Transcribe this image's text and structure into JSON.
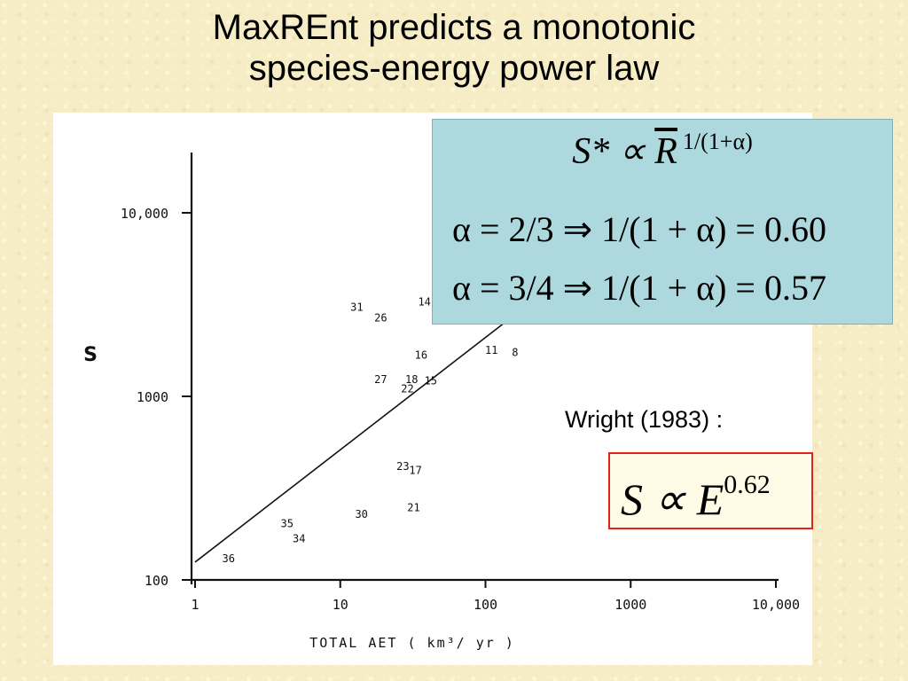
{
  "slide": {
    "title_line1": "MaxREnt predicts a monotonic",
    "title_line2": "species-energy power law"
  },
  "formulas": {
    "main_lhs": "S*",
    "main_prop": " ∝ ",
    "main_var": "R",
    "main_exp": "1/(1+α)",
    "line1": "α = 2/3 ⇒ 1/(1 + α) = 0.60",
    "line2": "α = 3/4 ⇒ 1/(1 + α) = 0.57"
  },
  "wright": {
    "label": "Wright (1983) :",
    "eq_base": "S ∝ E",
    "eq_exp": "0.62"
  },
  "chart_data": {
    "type": "scatter",
    "xlabel": "TOTAL AET  ( km³/ yr )",
    "ylabel": "S",
    "xscale": "log",
    "yscale": "log",
    "xlim": [
      1,
      10000
    ],
    "ylim": [
      100,
      15000
    ],
    "x_ticks": [
      1,
      10,
      100,
      1000,
      10000
    ],
    "x_tick_labels": [
      "1",
      "10",
      "100",
      "1000",
      "10,000"
    ],
    "y_ticks": [
      100,
      1000,
      10000
    ],
    "y_tick_labels": [
      "100",
      "1000",
      "10,000"
    ],
    "grid": false,
    "points": [
      {
        "label": "31",
        "x": 13,
        "y": 3100
      },
      {
        "label": "26",
        "x": 19,
        "y": 2700
      },
      {
        "label": "14",
        "x": 38,
        "y": 3300
      },
      {
        "label": "16",
        "x": 36,
        "y": 1700
      },
      {
        "label": "11",
        "x": 110,
        "y": 1800
      },
      {
        "label": "8",
        "x": 160,
        "y": 1750
      },
      {
        "label": "27",
        "x": 19,
        "y": 1250
      },
      {
        "label": "18",
        "x": 31,
        "y": 1250
      },
      {
        "label": "15",
        "x": 42,
        "y": 1230
      },
      {
        "label": "22",
        "x": 29,
        "y": 1110
      },
      {
        "label": "23",
        "x": 27,
        "y": 420
      },
      {
        "label": "17",
        "x": 33,
        "y": 400
      },
      {
        "label": "21",
        "x": 32,
        "y": 250
      },
      {
        "label": "30",
        "x": 14,
        "y": 230
      },
      {
        "label": "35",
        "x": 4.3,
        "y": 205
      },
      {
        "label": "34",
        "x": 5.2,
        "y": 170
      },
      {
        "label": "36",
        "x": 1.7,
        "y": 132
      }
    ],
    "fit_line": {
      "x": [
        1,
        180
      ],
      "y": [
        125,
        3000
      ]
    }
  }
}
